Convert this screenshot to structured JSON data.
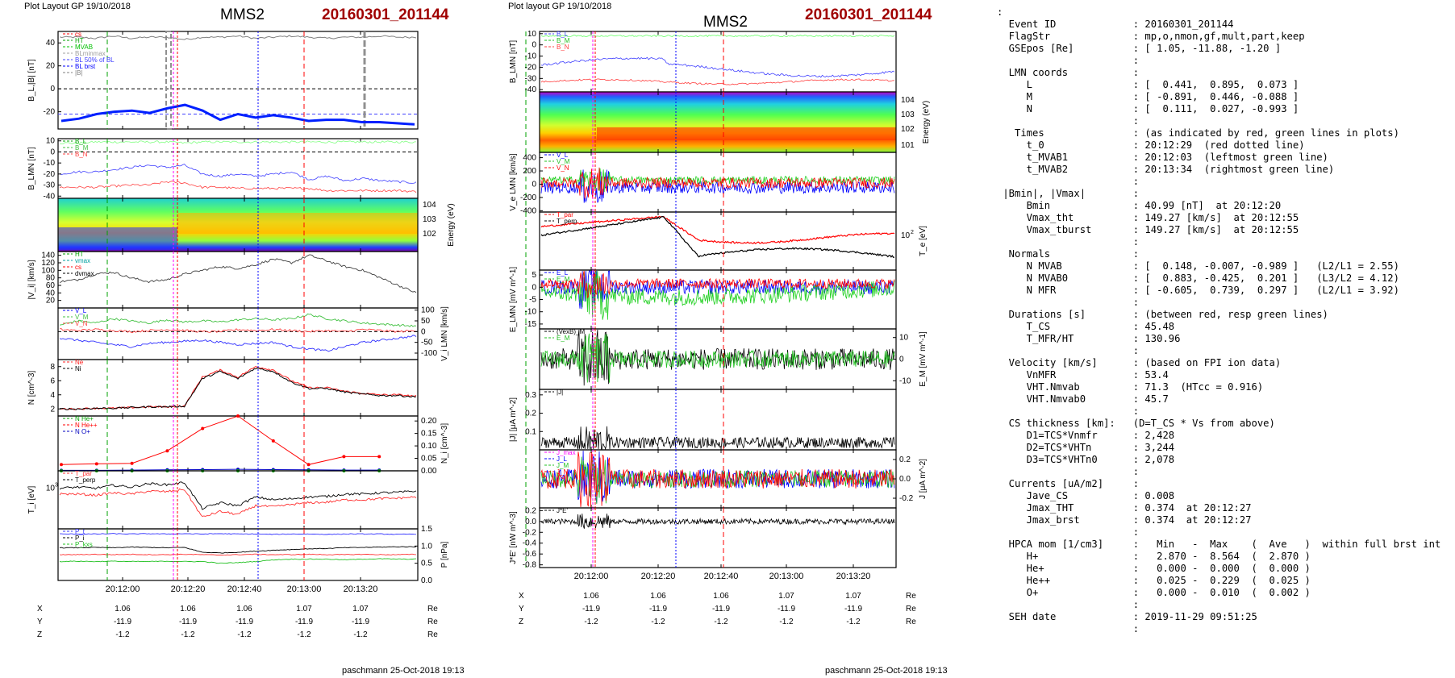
{
  "left_plot": {
    "layout_title": "Plot Layout GP 19/10/2018",
    "spacecraft": "MMS2",
    "event": "20160301_201144",
    "footer": "paschmann 25-Oct-2018 19:13",
    "time_ticks": [
      "20:12:00",
      "20:12:20",
      "20:12:40",
      "20:13:00",
      "20:13:20"
    ],
    "position_rows": [
      {
        "label": "X",
        "values": [
          "1.06",
          "1.06",
          "1.06",
          "1.07",
          "1.07"
        ],
        "unit": "Re"
      },
      {
        "label": "Y",
        "values": [
          "-11.9",
          "-11.9",
          "-11.9",
          "-11.9",
          "-11.9"
        ],
        "unit": "Re"
      },
      {
        "label": "Z",
        "values": [
          "-1.2",
          "-1.2",
          "-1.2",
          "-1.2",
          "-1.2"
        ],
        "unit": "Re"
      }
    ]
  },
  "right_plot": {
    "layout_title": "Plot layout GP 19/10/2018",
    "spacecraft": "MMS2",
    "event": "20160301_201144",
    "footer": "paschmann 25-Oct-2018 19:13",
    "time_ticks": [
      "20:12:00",
      "20:12:20",
      "20:12:40",
      "20:13:00",
      "20:13:20"
    ],
    "position_rows": [
      {
        "label": "X",
        "values": [
          "1.06",
          "1.06",
          "1.06",
          "1.07",
          "1.07"
        ],
        "unit": "Re"
      },
      {
        "label": "Y",
        "values": [
          "-11.9",
          "-11.9",
          "-11.9",
          "-11.9",
          "-11.9"
        ],
        "unit": "Re"
      },
      {
        "label": "Z",
        "values": [
          "-1.2",
          "-1.2",
          "-1.2",
          "-1.2",
          "-1.2"
        ],
        "unit": "Re"
      }
    ]
  },
  "chart_data": [
    {
      "type": "line",
      "panel": "left-1",
      "ylabel": "B_L,|B| [nT]",
      "ylim": [
        -35,
        50
      ],
      "yticks": [
        "40",
        "20",
        "0",
        "-20"
      ],
      "legend": [
        "cs",
        "HT",
        "MVAB",
        "BLminmax",
        "BL 50% of BL",
        "BL brst",
        "|B|"
      ],
      "series": [
        {
          "name": "|B|",
          "color": "#808080",
          "values": [
            45,
            45,
            44,
            46,
            44,
            45,
            45,
            43,
            45,
            45,
            46,
            44,
            45,
            46,
            45,
            44,
            45,
            45,
            46,
            45,
            45
          ]
        },
        {
          "name": "BL brst",
          "color": "#0020ff",
          "values": [
            -28,
            -26,
            -22,
            -20,
            -19,
            -21,
            -17,
            -14,
            -19,
            -27,
            -22,
            -25,
            -23,
            -25,
            -28,
            -27,
            -27,
            -29,
            -29,
            -30,
            -31
          ]
        }
      ]
    },
    {
      "type": "line",
      "panel": "left-2",
      "ylabel": "B_LMN [nT]",
      "ylim": [
        -42,
        12
      ],
      "yticks": [
        "10",
        "0",
        "-10",
        "-20",
        "-30",
        "-40"
      ],
      "legend": [
        "B_L",
        "B_M",
        "B_N"
      ],
      "series": [
        {
          "name": "B_L",
          "color": "#80ff80",
          "values": [
            8,
            8,
            9,
            9,
            9,
            9,
            9,
            8,
            9,
            9,
            9,
            9,
            9,
            9,
            9,
            9,
            9,
            9,
            9,
            9,
            9
          ]
        },
        {
          "name": "B_M",
          "color": "#4040ff",
          "values": [
            -20,
            -18,
            -18,
            -16,
            -14,
            -12,
            -14,
            -12,
            -20,
            -22,
            -20,
            -22,
            -20,
            -18,
            -25,
            -22,
            -26,
            -24,
            -26,
            -27,
            -28
          ]
        },
        {
          "name": "B_N",
          "color": "#ff4040",
          "values": [
            -32,
            -32,
            -32,
            -31,
            -30,
            -30,
            -27,
            -28,
            -32,
            -32,
            -33,
            -33,
            -33,
            -33,
            -33,
            -35,
            -35,
            -35,
            -35,
            -35,
            -36
          ]
        }
      ]
    },
    {
      "type": "heatmap",
      "panel": "left-3",
      "ylabel": "Energy (eV)",
      "yticks": [
        "10^4",
        "10^3",
        "10^2"
      ]
    },
    {
      "type": "line",
      "panel": "left-4",
      "ylabel": "|V_i| [km/s]",
      "ylim": [
        0,
        150
      ],
      "yticks": [
        "140",
        "120",
        "100",
        "80",
        "60",
        "40",
        "20"
      ],
      "legend": [
        "HT",
        "vmax",
        "cs",
        "dvmax"
      ],
      "series": [
        {
          "name": "|Vi|",
          "color": "#404040",
          "values": [
            70,
            75,
            90,
            95,
            80,
            70,
            75,
            90,
            100,
            110,
            105,
            115,
            130,
            120,
            140,
            125,
            110,
            100,
            80,
            60,
            40
          ]
        }
      ]
    },
    {
      "type": "line",
      "panel": "left-5",
      "ylabel": "V_i LMN [km/s]",
      "ylim": [
        -130,
        110
      ],
      "yticks": [
        "100",
        "50",
        "0",
        "-50",
        "-100"
      ],
      "legend": [
        "V_L",
        "V_M",
        "V_N"
      ],
      "series": [
        {
          "name": "V_L",
          "color": "#40c040",
          "values": [
            30,
            50,
            40,
            60,
            50,
            40,
            55,
            45,
            50,
            45,
            55,
            60,
            55,
            60,
            80,
            60,
            50,
            40,
            35,
            30,
            25
          ]
        },
        {
          "name": "V_M",
          "color": "#ff4040",
          "values": [
            10,
            5,
            10,
            5,
            0,
            5,
            10,
            5,
            0,
            0,
            10,
            5,
            10,
            5,
            0,
            5,
            0,
            10,
            5,
            0,
            5
          ]
        },
        {
          "name": "V_N",
          "color": "#3030ff",
          "values": [
            -30,
            -40,
            -50,
            -60,
            -70,
            -55,
            -50,
            -45,
            -40,
            -50,
            -60,
            -55,
            -50,
            -70,
            -80,
            -90,
            -70,
            -50,
            -40,
            -30,
            -20
          ]
        }
      ]
    },
    {
      "type": "line",
      "panel": "left-6",
      "ylabel": "N [cm^-3]",
      "ylim": [
        1,
        9
      ],
      "yticks": [
        "8",
        "6",
        "4",
        "2"
      ],
      "legend": [
        "Ne",
        "Ni"
      ],
      "series": [
        {
          "name": "Ne",
          "color": "#ff2020",
          "values": [
            2.0,
            2.0,
            2.1,
            2.1,
            2.2,
            2.3,
            2.3,
            2.4,
            6.5,
            7.5,
            6.5,
            8.0,
            7.5,
            6.0,
            5.0,
            5.0,
            4.5,
            4.2,
            4.0,
            4.0,
            3.8
          ]
        },
        {
          "name": "Ni",
          "color": "#000000",
          "values": [
            2.0,
            2.0,
            2.1,
            2.1,
            2.2,
            2.3,
            2.3,
            2.4,
            6.3,
            7.3,
            6.3,
            7.8,
            7.3,
            5.8,
            4.9,
            4.9,
            4.4,
            4.1,
            3.9,
            3.9,
            3.7
          ]
        }
      ]
    },
    {
      "type": "line",
      "panel": "left-7",
      "ylabel": "N_i [cm^-3]",
      "ylim": [
        0,
        0.22
      ],
      "yticks": [
        "0.20",
        "0.15",
        "0.10",
        "0.05",
        "0.00"
      ],
      "legend": [
        "N He+",
        "N He++",
        "N O+"
      ],
      "series": [
        {
          "name": "N He++",
          "color": "#ff0000",
          "x": [
            0,
            2,
            4,
            6,
            8,
            10,
            12,
            14,
            16,
            18
          ],
          "values": [
            0.025,
            0.028,
            0.03,
            0.08,
            0.17,
            0.22,
            0.12,
            0.025,
            0.057,
            0.057
          ]
        },
        {
          "name": "N O+",
          "color": "#0000c0",
          "x": [
            0,
            2,
            4,
            6,
            8,
            10,
            12,
            14,
            16,
            18
          ],
          "values": [
            0.002,
            0.002,
            0.003,
            0.004,
            0.005,
            0.006,
            0.005,
            0.004,
            0.003,
            0.003
          ]
        },
        {
          "name": "N He+",
          "color": "#00a000",
          "x": [
            0,
            2,
            4,
            6,
            8,
            10,
            12,
            14,
            16,
            18
          ],
          "values": [
            0,
            0,
            0,
            0,
            0,
            0,
            0,
            0,
            0,
            0
          ]
        }
      ]
    },
    {
      "type": "line",
      "panel": "left-8",
      "ylabel": "T_i [eV]",
      "yticks": [
        "10^3"
      ],
      "legend": [
        "T_par",
        "T_perp"
      ],
      "series": [
        {
          "name": "T_perp",
          "color": "#000000",
          "values": [
            1.1,
            1.12,
            1.1,
            1.15,
            1.12,
            1.18,
            1.16,
            1.2,
            0.75,
            0.85,
            0.8,
            0.95,
            0.9,
            0.92,
            0.95,
            0.96,
            1.0,
            1.0,
            1.02,
            1.03,
            1.05
          ]
        },
        {
          "name": "T_par",
          "color": "#ff3030",
          "values": [
            1.0,
            1.0,
            0.98,
            1.02,
            1.0,
            1.05,
            1.04,
            1.08,
            0.6,
            0.7,
            0.65,
            0.8,
            0.78,
            0.82,
            0.85,
            0.86,
            0.9,
            0.9,
            0.92,
            0.93,
            0.95
          ]
        }
      ]
    },
    {
      "type": "line",
      "panel": "left-9",
      "ylabel": "P [nPa]",
      "ylim": [
        0,
        1.5
      ],
      "yticks": [
        "1.5",
        "1.0",
        "0.5",
        "0.0"
      ],
      "legend": [
        "P_t",
        "P_i",
        "P_kxs"
      ],
      "series": [
        {
          "name": "P_t",
          "color": "#3030ff",
          "values": [
            1.35,
            1.35,
            1.35,
            1.36,
            1.35,
            1.36,
            1.35,
            1.36,
            1.35,
            1.36,
            1.35,
            1.35,
            1.34,
            1.35,
            1.35,
            1.34,
            1.35,
            1.35,
            1.35,
            1.34,
            1.35
          ]
        },
        {
          "name": "P_i",
          "color": "#000000",
          "values": [
            0.95,
            0.95,
            0.96,
            0.95,
            0.97,
            0.96,
            0.95,
            0.96,
            0.82,
            0.8,
            0.82,
            0.85,
            0.88,
            0.9,
            0.92,
            0.93,
            0.95,
            0.96,
            0.97,
            0.98,
            0.98
          ]
        },
        {
          "name": "P_kxs",
          "color": "#20c020",
          "values": [
            0.55,
            0.56,
            0.55,
            0.56,
            0.55,
            0.55,
            0.56,
            0.55,
            0.55,
            0.5,
            0.52,
            0.55,
            0.6,
            0.62,
            0.62,
            0.62,
            0.6,
            0.62,
            0.63,
            0.62,
            0.62
          ]
        },
        {
          "name": "P_e",
          "color": "#ff3030",
          "values": [
            0.75,
            0.75,
            0.76,
            0.75,
            0.76,
            0.75,
            0.75,
            0.76,
            0.75,
            0.74,
            0.75,
            0.76,
            0.75,
            0.75,
            0.76,
            0.75,
            0.75,
            0.76,
            0.75,
            0.75,
            0.76
          ]
        }
      ]
    },
    {
      "type": "line",
      "panel": "right-1",
      "ylabel": "B_LMN [nT]",
      "ylim": [
        -42,
        12
      ],
      "yticks": [
        "10",
        "0",
        "-10",
        "-20",
        "-30",
        "-40"
      ],
      "legend": [
        "B_L",
        "B_M",
        "B_N"
      ]
    },
    {
      "type": "heatmap",
      "panel": "right-2",
      "ylabel": "Energy (eV)",
      "yticks": [
        "10^4",
        "10^3",
        "10^2",
        "10^1"
      ]
    },
    {
      "type": "line",
      "panel": "right-3",
      "ylabel": "V_e LMN [km/s]",
      "ylim": [
        -420,
        480
      ],
      "yticks": [
        "400",
        "200",
        "0",
        "-200",
        "-400"
      ],
      "legend": [
        "V_L",
        "V_M",
        "V_N"
      ]
    },
    {
      "type": "line",
      "panel": "right-4",
      "ylabel": "T_e [eV]",
      "yticks": [
        "10^2"
      ],
      "legend": [
        "T_par",
        "T_perp"
      ]
    },
    {
      "type": "line",
      "panel": "right-5",
      "ylabel": "E_LMN [mV m^-1]",
      "ylim": [
        -17,
        7
      ],
      "yticks": [
        "5",
        "0",
        "-5",
        "-10",
        "-15"
      ],
      "legend": [
        "E_L",
        "E_M",
        "E_N"
      ]
    },
    {
      "type": "line",
      "panel": "right-6",
      "ylabel": "E_M [mV m^-1]",
      "ylim": [
        -14,
        14
      ],
      "yticks": [
        "10",
        "0",
        "-10"
      ],
      "legend": [
        "(VexB)_M",
        "E_M"
      ]
    },
    {
      "type": "line",
      "panel": "right-7",
      "ylabel": "|J| [μA m^-2]",
      "ylim": [
        0,
        0.33
      ],
      "yticks": [
        "0.3",
        "0.2",
        "0.1"
      ],
      "legend": [
        "|J|"
      ]
    },
    {
      "type": "line",
      "panel": "right-8",
      "ylabel": "J [μA m^-2]",
      "ylim": [
        -0.3,
        0.3
      ],
      "yticks": [
        "0.2",
        "0.0",
        "-0.2"
      ],
      "legend": [
        "J_max",
        "J_L",
        "J_M",
        "J_N"
      ]
    },
    {
      "type": "line",
      "panel": "right-9",
      "ylabel": "J*E' [nW m^-3]",
      "ylim": [
        -0.85,
        0.25
      ],
      "yticks": [
        "0.2",
        "0.0",
        "-0.2",
        "-0.4",
        "-0.6",
        "-0.8"
      ],
      "legend": [
        "J*E'"
      ]
    }
  ],
  "info_panel": {
    "lines": [
      ":",
      "  Event ID             : 20160301_201144",
      "  FlagStr              : mp,o,nmon,gf,mult,part,keep",
      "  GSEpos [Re]          : [ 1.05, -11.88, -1.20 ]",
      "                       :",
      "  LMN coords           :",
      "     L                 : [  0.441,  0.895,  0.073 ]",
      "     M                 : [ -0.891,  0.446, -0.088 ]",
      "     N                 : [  0.111,  0.027, -0.993 ]",
      "                       :",
      "   Times               : (as indicated by red, green lines in plots)",
      "     t_0               : 20:12:29  (red dotted line)",
      "     t_MVAB1           : 20:12:03  (leftmost green line)",
      "     t_MVAB2           : 20:13:34  (rightmost green line)",
      "                       :",
      " |Bmin|, |Vmax|        :",
      "     Bmin              : 40.99 [nT]  at 20:12:20",
      "     Vmax_tht          : 149.27 [km/s]  at 20:12:55",
      "     Vmax_tburst       : 149.27 [km/s]  at 20:12:55",
      "                       :",
      "  Normals              :",
      "     N MVAB            : [  0.148, -0.007, -0.989 ]   (L2/L1 = 2.55)",
      "     N MVAB0           : [  0.883, -0.425,  0.201 ]   (L3/L2 = 4.12)",
      "     N MFR             : [ -0.605,  0.739,  0.297 ]   (L2/L1 = 3.92)",
      "                       :",
      "  Durations [s]        : (between red, resp green lines)",
      "     T_CS              : 45.48",
      "     T_MFR/HT          : 130.96",
      "                       :",
      "  Velocity [km/s]      : (based on FPI ion data)",
      "     VnMFR             : 53.4",
      "     VHT.Nmvab         : 71.3  (HTcc = 0.916)",
      "     VHT.Nmvab0        : 45.7",
      "                       :",
      "  CS thickness [km]:   (D=T_CS * Vs from above)",
      "     D1=TCS*Vnmfr      : 2,428",
      "     D2=TCS*VHTn       : 3,244",
      "     D3=TCS*VHTn0      : 2,078",
      "                       :",
      "  Currents [uA/m2]     :",
      "     Jave_CS           : 0.008",
      "     Jmax_THT          : 0.374  at 20:12:27",
      "     Jmax_brst         : 0.374  at 20:12:27",
      "                       :",
      "  HPCA mom [1/cm3]     :   Min   -  Max    (  Ave   )  within full brst int",
      "     H+                :   2.870 -  8.564  (  2.870 )",
      "     He+               :   0.000 -  0.000  (  0.000 )",
      "     He++              :   0.025 -  0.229  (  0.025 )",
      "     O+                :   0.000 -  0.010  (  0.002 )",
      "                       :",
      "  SEH date             : 2019-11-29 09:51:25",
      "                       :"
    ]
  }
}
